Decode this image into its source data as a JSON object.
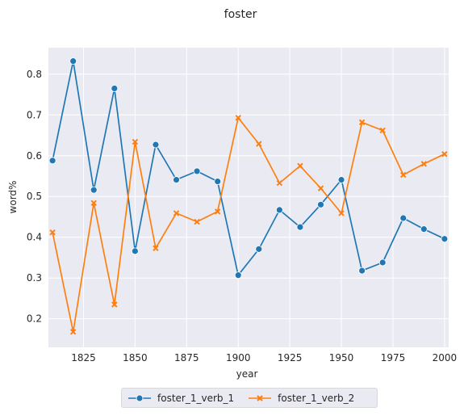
{
  "chart_data": {
    "type": "line",
    "title": "foster",
    "xlabel": "year",
    "ylabel": "word%",
    "xlim": [
      1808,
      2002
    ],
    "ylim": [
      0.13,
      0.865
    ],
    "xticks": [
      1825,
      1850,
      1875,
      1900,
      1925,
      1950,
      1975,
      2000
    ],
    "yticks": [
      0.2,
      0.3,
      0.4,
      0.5,
      0.6,
      0.7,
      0.8
    ],
    "grid": true,
    "legend_position": "bottom-center",
    "x": [
      1810,
      1820,
      1830,
      1840,
      1850,
      1860,
      1870,
      1880,
      1890,
      1900,
      1910,
      1920,
      1930,
      1940,
      1950,
      1960,
      1970,
      1980,
      1990,
      2000
    ],
    "series": [
      {
        "name": "foster_1_verb_1",
        "color": "#1f77b4",
        "marker": "circle",
        "values": [
          0.588,
          0.832,
          0.516,
          0.765,
          0.366,
          0.627,
          0.541,
          0.562,
          0.537,
          0.307,
          0.371,
          0.467,
          0.425,
          0.48,
          0.541,
          0.318,
          0.338,
          0.447,
          0.42,
          0.396
        ]
      },
      {
        "name": "foster_1_verb_2",
        "color": "#ff7f0e",
        "marker": "x",
        "values": [
          0.412,
          0.168,
          0.484,
          0.235,
          0.634,
          0.373,
          0.459,
          0.438,
          0.463,
          0.693,
          0.629,
          0.533,
          0.575,
          0.52,
          0.459,
          0.682,
          0.662,
          0.553,
          0.58,
          0.604
        ]
      }
    ]
  }
}
